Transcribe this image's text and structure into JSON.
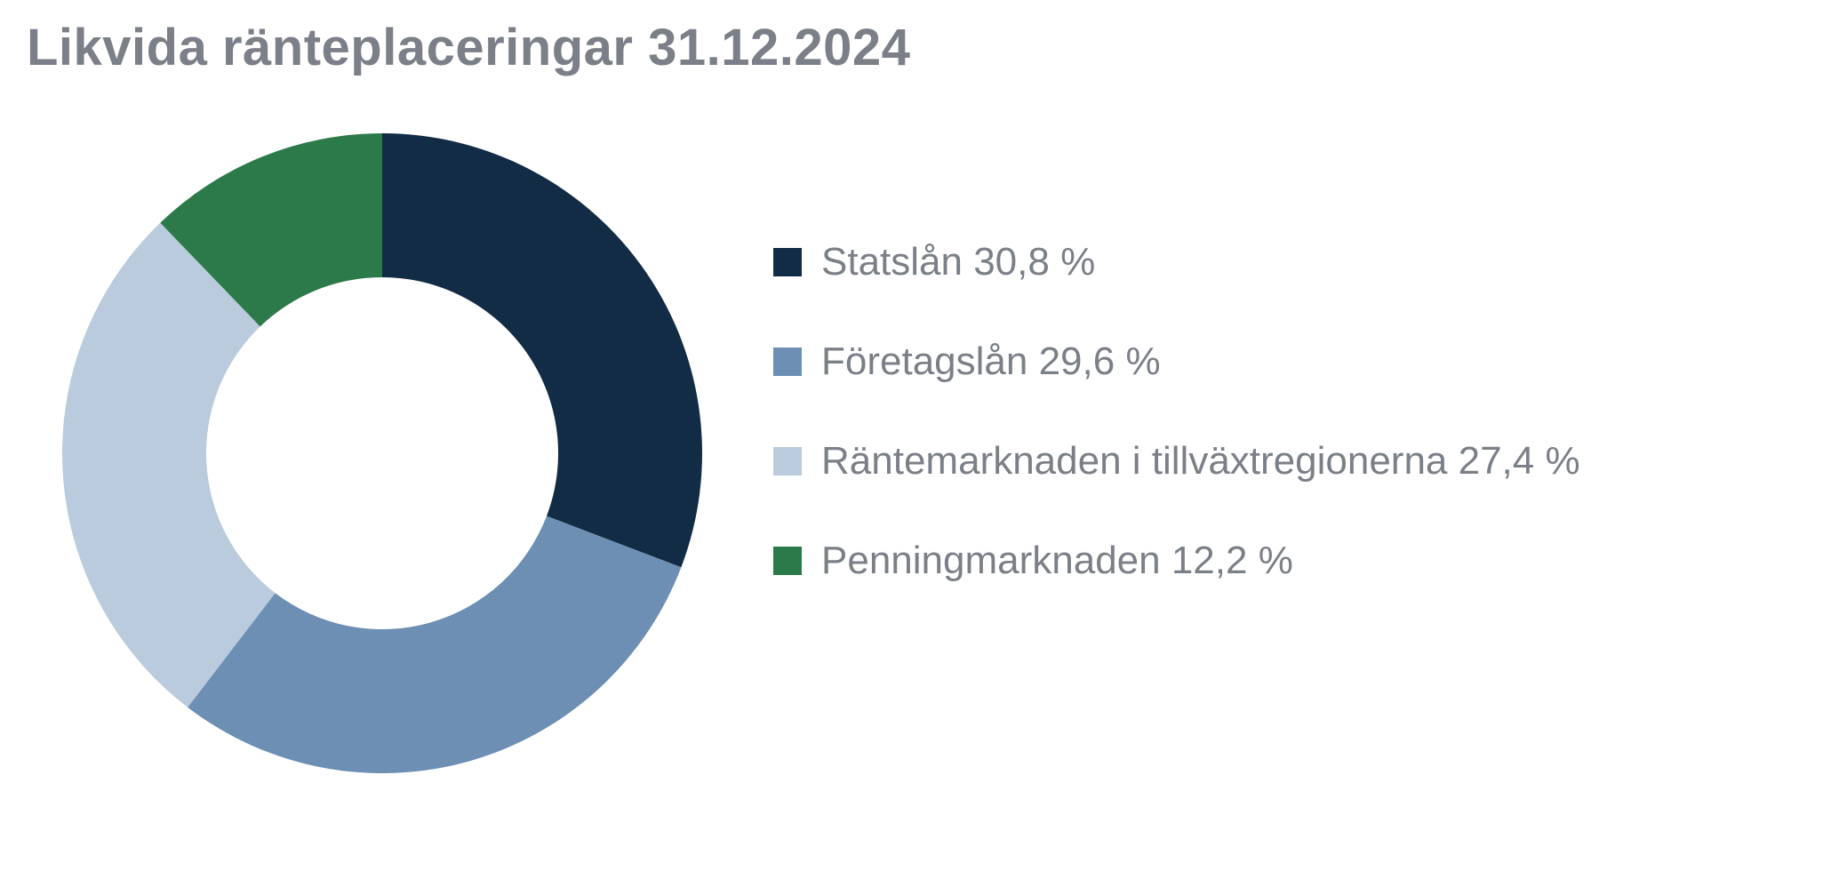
{
  "chart": {
    "type": "donut",
    "title": "Likvida ränteplaceringar 31.12.2024",
    "title_color": "#7b8088",
    "title_fontsize": 58,
    "title_fontweight": 600,
    "background_color": "#ffffff",
    "legend_text_color": "#7b8088",
    "legend_fontsize": 44,
    "legend_swatch_size": 32,
    "legend_gap": 62,
    "outer_radius": 360,
    "inner_radius": 198,
    "start_angle_deg": -90,
    "direction": "clockwise",
    "slices": [
      {
        "label": "Statslån 30,8 %",
        "value": 30.8,
        "color": "#122c45"
      },
      {
        "label": "Företagslån 29,6 %",
        "value": 29.6,
        "color": "#6d8fb4"
      },
      {
        "label": "Räntemarknaden i tillväxtregionerna 27,4 %",
        "value": 27.4,
        "color": "#b9cbdc"
      },
      {
        "label": "Penningmarknaden 12,2 %",
        "value": 12.2,
        "color": "#2c7a4a"
      }
    ]
  }
}
